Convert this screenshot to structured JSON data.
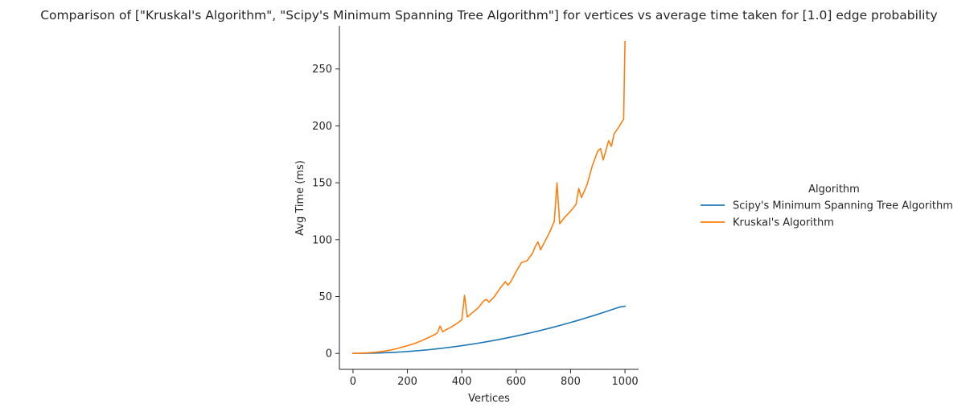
{
  "chart_data": {
    "type": "line",
    "title": "Comparison of [\"Kruskal's Algorithm\", \"Scipy's Minimum Spanning Tree Algorithm\"] for vertices vs average time taken for [1.0] edge probability",
    "xlabel": "Vertices",
    "ylabel": "Avg Time (ms)",
    "xlim": [
      -50,
      1050
    ],
    "ylim": [
      -14,
      288
    ],
    "xticks": [
      0,
      200,
      400,
      600,
      800,
      1000
    ],
    "yticks": [
      0,
      50,
      100,
      150,
      200,
      250
    ],
    "grid": false,
    "legend": {
      "title": "Algorithm",
      "placement": "right"
    },
    "series": [
      {
        "name": "Scipy's Minimum Spanning Tree Algorithm",
        "color": "#1f77b4",
        "x": [
          0,
          20,
          40,
          60,
          80,
          100,
          120,
          140,
          160,
          180,
          200,
          220,
          240,
          260,
          280,
          300,
          320,
          340,
          360,
          380,
          400,
          420,
          440,
          460,
          480,
          500,
          520,
          540,
          560,
          580,
          600,
          620,
          640,
          660,
          680,
          700,
          720,
          740,
          760,
          780,
          800,
          820,
          840,
          860,
          880,
          900,
          920,
          940,
          960,
          980,
          1000
        ],
        "y": [
          0.0,
          0.02,
          0.07,
          0.15,
          0.27,
          0.42,
          0.61,
          0.83,
          1.09,
          1.38,
          1.7,
          2.06,
          2.45,
          2.87,
          3.33,
          3.83,
          4.35,
          4.91,
          5.51,
          6.14,
          6.8,
          7.5,
          8.23,
          9.0,
          9.8,
          10.63,
          11.5,
          12.4,
          13.34,
          14.31,
          15.31,
          16.35,
          17.42,
          18.52,
          19.66,
          20.83,
          22.04,
          23.28,
          24.55,
          25.86,
          27.2,
          28.57,
          29.98,
          31.42,
          32.9,
          34.4,
          35.95,
          37.52,
          39.13,
          40.77,
          41.5
        ]
      },
      {
        "name": "Kruskal's Algorithm",
        "color": "#ff7f0e",
        "x": [
          0,
          20,
          40,
          60,
          80,
          100,
          120,
          140,
          160,
          180,
          200,
          220,
          240,
          260,
          280,
          300,
          310,
          320,
          330,
          340,
          360,
          380,
          400,
          410,
          420,
          440,
          460,
          480,
          490,
          500,
          520,
          540,
          560,
          570,
          580,
          600,
          620,
          640,
          660,
          670,
          680,
          690,
          700,
          720,
          740,
          750,
          760,
          780,
          800,
          820,
          830,
          840,
          860,
          880,
          900,
          910,
          920,
          940,
          950,
          960,
          980,
          995,
          1000
        ],
        "y": [
          0.0,
          0.1,
          0.3,
          0.6,
          1.0,
          1.5,
          2.2,
          3.0,
          4.2,
          5.5,
          6.8,
          8.2,
          10.0,
          12.0,
          14.2,
          16.5,
          18.0,
          24.0,
          19.0,
          20.5,
          23.0,
          26.0,
          29.5,
          51.0,
          32.0,
          36.0,
          40.0,
          46.0,
          47.5,
          45.0,
          50.0,
          57.0,
          63.0,
          60.0,
          63.0,
          72.0,
          80.0,
          81.5,
          88.0,
          94.0,
          98.0,
          91.0,
          96.0,
          105.0,
          116.0,
          150.0,
          114.0,
          120.0,
          125.0,
          131.0,
          145.0,
          137.0,
          148.0,
          165.0,
          178.0,
          180.0,
          170.0,
          187.0,
          182.0,
          193.0,
          200.0,
          206.0,
          274.0
        ]
      }
    ]
  }
}
